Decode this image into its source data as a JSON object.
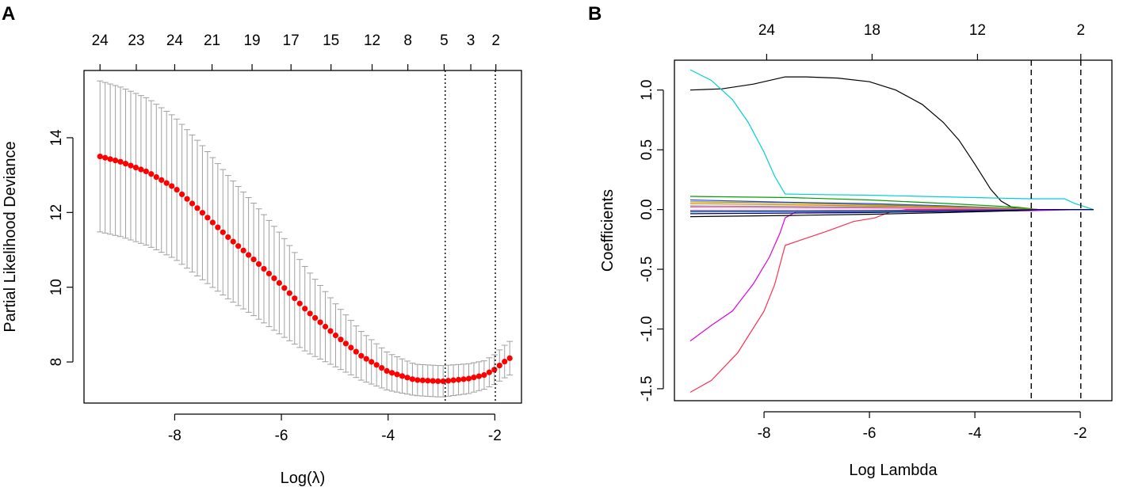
{
  "figure": {
    "panel_labels": [
      "A",
      "B"
    ]
  },
  "chart_data": [
    {
      "type": "scatter",
      "panel": "A",
      "title": "",
      "xlabel": "Log(λ)",
      "ylabel": "Partial Likelihood Deviance",
      "xlim": [
        -9.7,
        -1.5
      ],
      "ylim": [
        6.9,
        15.8
      ],
      "x_ticks": [
        -8,
        -6,
        -4,
        -2
      ],
      "x_tick_labels": [
        "-8",
        "-6",
        "-4",
        "-2"
      ],
      "y_ticks": [
        8,
        10,
        12,
        14
      ],
      "y_tick_labels": [
        "8",
        "10",
        "12",
        "14"
      ],
      "top_axis": {
        "positions": [
          -9.4,
          -8.72,
          -8.0,
          -7.3,
          -6.55,
          -5.82,
          -5.07,
          -4.3,
          -3.63,
          -2.95,
          -2.45,
          -1.98
        ],
        "labels": [
          "24",
          "23",
          "24",
          "21",
          "19",
          "17",
          "15",
          "12",
          "8",
          "5",
          "3",
          "2"
        ]
      },
      "vlines": [
        -2.93,
        -1.99
      ],
      "vline_style": "dotted",
      "marker_color": "#ff0000",
      "errorbar_color": "#a0a0a0",
      "points": {
        "x_start": -9.4,
        "x_end": -1.72,
        "count": 81,
        "anchors_x": [
          -9.4,
          -9.0,
          -8.5,
          -8.0,
          -7.5,
          -7.0,
          -6.5,
          -6.0,
          -5.5,
          -5.0,
          -4.5,
          -4.0,
          -3.5,
          -3.0,
          -2.5,
          -2.2,
          -2.0,
          -1.85,
          -1.72
        ],
        "anchors_mean": [
          13.5,
          13.35,
          13.08,
          12.66,
          12.02,
          11.34,
          10.72,
          10.06,
          9.34,
          8.73,
          8.16,
          7.74,
          7.52,
          7.48,
          7.55,
          7.65,
          7.8,
          7.98,
          8.1
        ],
        "anchors_halfwidth": [
          2.02,
          2.0,
          1.97,
          1.9,
          1.8,
          1.65,
          1.5,
          1.35,
          1.1,
          0.85,
          0.65,
          0.5,
          0.42,
          0.42,
          0.4,
          0.38,
          0.4,
          0.43,
          0.45
        ]
      }
    },
    {
      "type": "line",
      "panel": "B",
      "title": "",
      "xlabel": "Log Lambda",
      "ylabel": "Coefficients",
      "xlim": [
        -9.7,
        -1.4
      ],
      "ylim": [
        -1.6,
        1.25
      ],
      "x_ticks": [
        -8,
        -6,
        -4,
        -2
      ],
      "x_tick_labels": [
        "-8",
        "-6",
        "-4",
        "-2"
      ],
      "y_ticks": [
        -1.5,
        -1.0,
        -0.5,
        0.0,
        0.5,
        1.0
      ],
      "y_tick_labels": [
        "-1.5",
        "-1.0",
        "-0.5",
        "0.0",
        "0.5",
        "1.0"
      ],
      "top_axis": {
        "positions": [
          -7.95,
          -5.95,
          -3.95,
          -1.99
        ],
        "labels": [
          "24",
          "18",
          "12",
          "2"
        ]
      },
      "vlines": [
        -2.93,
        -1.99
      ],
      "vline_style": "dashed",
      "series": [
        {
          "name": "black-top",
          "color": "#000000",
          "x": [
            -9.4,
            -8.8,
            -8.2,
            -7.6,
            -7.2,
            -6.6,
            -6.0,
            -5.5,
            -5.0,
            -4.6,
            -4.3,
            -4.0,
            -3.7,
            -3.5,
            -3.3,
            -3.1,
            -2.9
          ],
          "y": [
            1.0,
            1.01,
            1.05,
            1.11,
            1.11,
            1.1,
            1.07,
            1.0,
            0.88,
            0.73,
            0.58,
            0.38,
            0.17,
            0.07,
            0.02,
            0.0,
            0.0
          ]
        },
        {
          "name": "cyan",
          "color": "#00d0d0",
          "x": [
            -9.4,
            -9.0,
            -8.6,
            -8.3,
            -8.0,
            -7.8,
            -7.6,
            -7.0,
            -6.0,
            -5.0,
            -4.0,
            -3.0,
            -2.3,
            -2.1,
            -1.75
          ],
          "y": [
            1.17,
            1.08,
            0.92,
            0.73,
            0.48,
            0.28,
            0.13,
            0.125,
            0.12,
            0.11,
            0.1,
            0.09,
            0.09,
            0.05,
            0.0
          ]
        },
        {
          "name": "magenta",
          "color": "#e000e0",
          "x": [
            -9.4,
            -9.0,
            -8.6,
            -8.2,
            -7.9,
            -7.7,
            -7.6,
            -7.4,
            -7.0,
            -6.0,
            -5.0,
            -4.0,
            -3.0,
            -2.0
          ],
          "y": [
            -1.1,
            -0.97,
            -0.85,
            -0.62,
            -0.4,
            -0.2,
            -0.07,
            -0.02,
            -0.02,
            -0.02,
            -0.02,
            -0.01,
            -0.01,
            0.0
          ]
        },
        {
          "name": "red",
          "color": "#ff3050",
          "x": [
            -9.4,
            -9.0,
            -8.5,
            -8.0,
            -7.8,
            -7.6,
            -7.2,
            -6.8,
            -6.3,
            -5.9,
            -5.6,
            -5.3,
            -4.5,
            -3.5,
            -2.9
          ],
          "y": [
            -1.53,
            -1.43,
            -1.2,
            -0.85,
            -0.63,
            -0.3,
            -0.24,
            -0.18,
            -0.1,
            -0.07,
            -0.02,
            0.0,
            0.0,
            0.0,
            0.0
          ]
        },
        {
          "name": "green",
          "color": "#00a000",
          "x": [
            -9.4,
            -7.5,
            -6.0,
            -4.5,
            -3.2,
            -2.8
          ],
          "y": [
            0.11,
            0.1,
            0.08,
            0.05,
            0.02,
            0.0
          ]
        },
        {
          "name": "blue",
          "color": "#2040ff",
          "x": [
            -9.4,
            -7.5,
            -6.0,
            -4.5,
            -3.2,
            -2.8
          ],
          "y": [
            0.08,
            0.06,
            0.05,
            0.03,
            0.01,
            0.0
          ]
        },
        {
          "name": "orange",
          "color": "#e08000",
          "x": [
            -9.4,
            -7.5,
            -6.0,
            -4.5,
            -3.2,
            -2.8
          ],
          "y": [
            0.05,
            0.04,
            0.03,
            0.02,
            0.01,
            0.0
          ]
        },
        {
          "name": "gray",
          "color": "#808080",
          "x": [
            -9.4,
            -7.5,
            -6.0,
            -4.5,
            -3.2,
            -2.8
          ],
          "y": [
            0.03,
            0.025,
            0.02,
            0.01,
            0.005,
            0.0
          ]
        },
        {
          "name": "pink",
          "color": "#ff60c0",
          "x": [
            -9.4,
            -7.5,
            -6.0,
            -4.5,
            -3.2,
            -2.8
          ],
          "y": [
            0.02,
            0.015,
            0.012,
            0.008,
            0.003,
            0.0
          ]
        },
        {
          "name": "purple",
          "color": "#8000a0",
          "x": [
            -9.4,
            -7.5,
            -6.0,
            -4.5,
            -3.2,
            -2.8
          ],
          "y": [
            -0.01,
            -0.01,
            -0.008,
            -0.005,
            -0.002,
            0.0
          ]
        },
        {
          "name": "teal",
          "color": "#00a0a0",
          "x": [
            -9.4,
            -7.5,
            -6.0,
            -4.5,
            -3.2,
            -2.8
          ],
          "y": [
            -0.02,
            -0.018,
            -0.015,
            -0.01,
            -0.004,
            0.0
          ]
        },
        {
          "name": "black-low",
          "color": "#000000",
          "x": [
            -9.4,
            -7.5,
            -6.0,
            -4.5,
            -3.2,
            -2.8
          ],
          "y": [
            -0.06,
            -0.05,
            -0.04,
            -0.025,
            -0.01,
            0.0
          ]
        },
        {
          "name": "olive",
          "color": "#909000",
          "x": [
            -9.4,
            -7.5,
            -6.0,
            -4.5,
            -3.2,
            -2.8
          ],
          "y": [
            0.065,
            0.055,
            0.04,
            0.025,
            0.01,
            0.0
          ]
        },
        {
          "name": "navy",
          "color": "#000080",
          "x": [
            -9.4,
            -7.5,
            -6.0,
            -4.5,
            -3.2,
            -2.8
          ],
          "y": [
            -0.035,
            -0.03,
            -0.025,
            -0.015,
            -0.005,
            0.0
          ]
        }
      ]
    }
  ]
}
